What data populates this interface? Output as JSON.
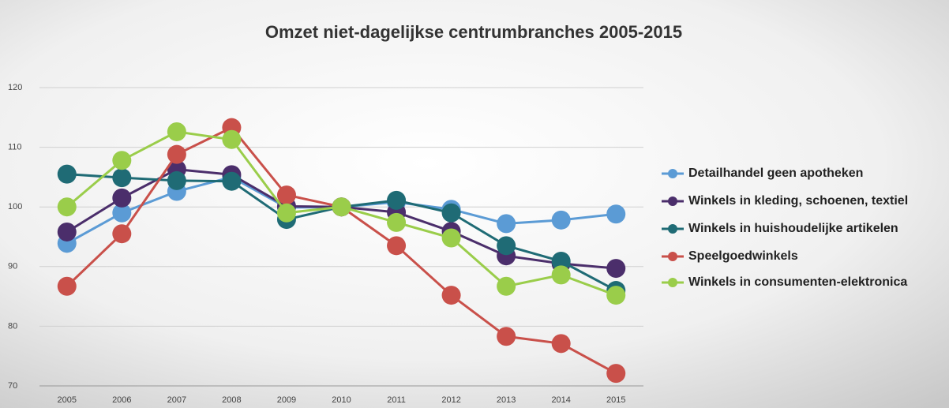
{
  "chart_data": {
    "type": "line",
    "title": "Omzet niet-dagelijkse centrumbranches 2005-2015",
    "categories": [
      "2005",
      "2006",
      "2007",
      "2008",
      "2009",
      "2010",
      "2011",
      "2012",
      "2013",
      "2014",
      "2015"
    ],
    "series": [
      {
        "name": "Detailhandel geen apotheken",
        "color": "#5b9bd5",
        "values": [
          93.9,
          99.0,
          102.6,
          105.0,
          99.9,
          100,
          100.8,
          99.6,
          97.2,
          97.8,
          98.8
        ]
      },
      {
        "name": "Winkels in kleding, schoenen, textiel",
        "color": "#4b2e6b",
        "values": [
          95.8,
          101.5,
          106.3,
          105.4,
          100.1,
          100,
          99.1,
          95.9,
          91.8,
          90.5,
          89.7
        ]
      },
      {
        "name": "Winkels in huishoudelijke artikelen",
        "color": "#1f6b75",
        "values": [
          105.5,
          104.9,
          104.4,
          104.3,
          97.9,
          100,
          101.1,
          99.0,
          93.5,
          90.9,
          86.0
        ]
      },
      {
        "name": "Speelgoedwinkels",
        "color": "#c9504a",
        "values": [
          86.7,
          95.5,
          108.8,
          113.3,
          102.0,
          100,
          93.5,
          85.2,
          78.3,
          77.1,
          72.1
        ]
      },
      {
        "name": "Winkels in consumenten-elektronica",
        "color": "#9acd4a",
        "values": [
          100.0,
          107.8,
          112.6,
          111.3,
          99.0,
          100,
          97.4,
          94.8,
          86.7,
          88.6,
          85.2
        ]
      }
    ],
    "ylim": [
      70,
      120
    ],
    "yticks": [
      70,
      80,
      90,
      100,
      110,
      120
    ],
    "grid": true,
    "legend": "right"
  }
}
